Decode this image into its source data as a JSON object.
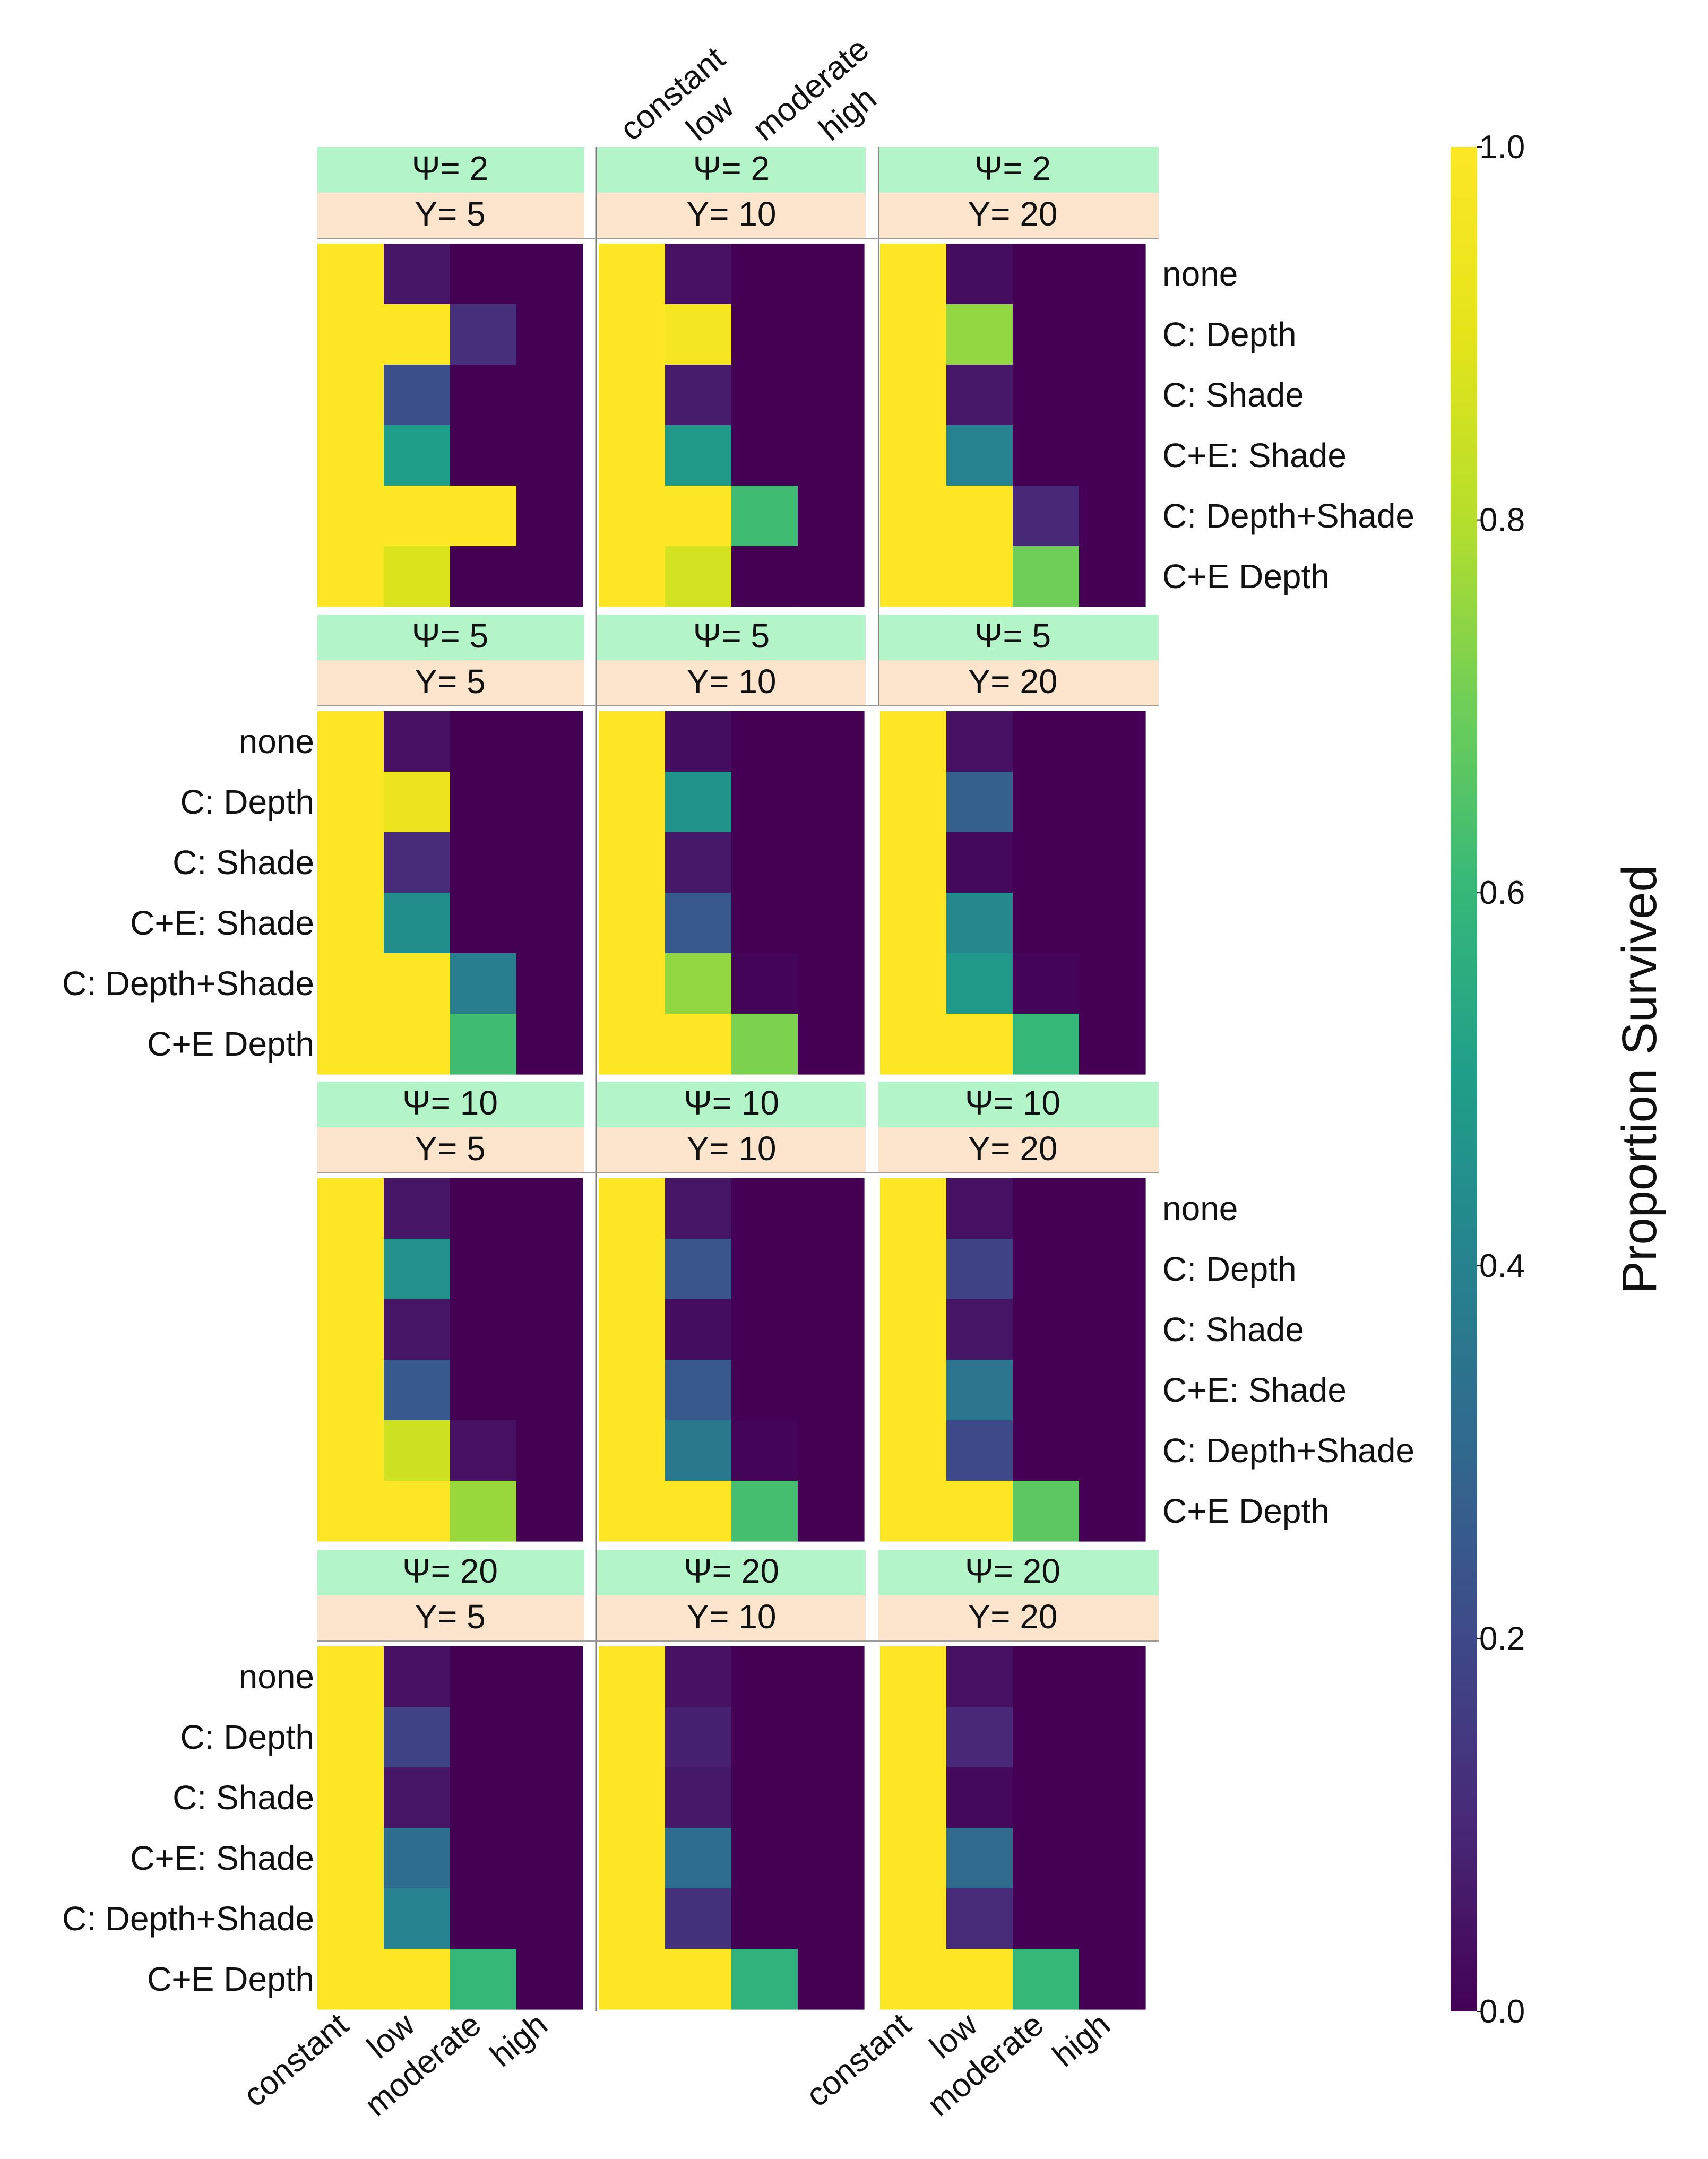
{
  "chart_data": {
    "type": "heatmap",
    "colorbar": {
      "label": "Proportion Survived",
      "ticks": [
        1.0,
        0.8,
        0.6,
        0.4,
        0.2,
        0.0
      ],
      "tick_labels": [
        "1.0",
        "0.8",
        "0.6",
        "0.4",
        "0.2",
        "0.0"
      ],
      "range": [
        0,
        1
      ],
      "colormap": "viridis"
    },
    "x_categories": [
      "constant",
      "low",
      "moderate",
      "high"
    ],
    "y_categories": [
      "none",
      "C: Depth",
      "C: Shade",
      "C+E: Shade",
      "C: Depth+Shade",
      "C+E Depth"
    ],
    "strip_colors": {
      "psi": "#b3f5c8",
      "y": "#fde4cc"
    },
    "panels": [
      {
        "psi": "Ψ= 2",
        "y": "Y= 5",
        "values": [
          [
            1,
            0.05,
            0,
            0
          ],
          [
            1,
            1,
            0.12,
            0
          ],
          [
            1,
            0.22,
            0,
            0
          ],
          [
            1,
            0.5,
            0,
            0
          ],
          [
            1,
            1,
            1,
            0
          ],
          [
            1,
            0.88,
            0,
            0
          ]
        ]
      },
      {
        "psi": "Ψ= 2",
        "y": "Y= 10",
        "values": [
          [
            1,
            0.04,
            0,
            0
          ],
          [
            1,
            0.97,
            0,
            0
          ],
          [
            1,
            0.07,
            0,
            0
          ],
          [
            1,
            0.48,
            0,
            0
          ],
          [
            1,
            1,
            0.62,
            0
          ],
          [
            1,
            0.86,
            0,
            0
          ]
        ]
      },
      {
        "psi": "Ψ= 2",
        "y": "Y= 20",
        "values": [
          [
            1,
            0.03,
            0,
            0
          ],
          [
            1,
            0.75,
            0,
            0
          ],
          [
            1,
            0.06,
            0,
            0
          ],
          [
            1,
            0.4,
            0,
            0
          ],
          [
            1,
            1,
            0.1,
            0
          ],
          [
            1,
            1,
            0.7,
            0
          ]
        ]
      },
      {
        "psi": "Ψ= 5",
        "y": "Y= 5",
        "values": [
          [
            1,
            0.04,
            0,
            0
          ],
          [
            1,
            0.93,
            0,
            0
          ],
          [
            1,
            0.11,
            0,
            0
          ],
          [
            1,
            0.44,
            0,
            0
          ],
          [
            1,
            1,
            0.38,
            0
          ],
          [
            1,
            1,
            0.62,
            0
          ]
        ]
      },
      {
        "psi": "Ψ= 5",
        "y": "Y= 10",
        "values": [
          [
            1,
            0.03,
            0,
            0
          ],
          [
            1,
            0.46,
            0,
            0
          ],
          [
            1,
            0.06,
            0,
            0
          ],
          [
            1,
            0.25,
            0,
            0
          ],
          [
            1,
            0.75,
            0.01,
            0
          ],
          [
            1,
            1,
            0.72,
            0
          ]
        ]
      },
      {
        "psi": "Ψ= 5",
        "y": "Y= 20",
        "values": [
          [
            1,
            0.04,
            0,
            0
          ],
          [
            1,
            0.27,
            0,
            0
          ],
          [
            1,
            0.02,
            0,
            0
          ],
          [
            1,
            0.42,
            0,
            0
          ],
          [
            1,
            0.48,
            0.01,
            0
          ],
          [
            1,
            1,
            0.6,
            0
          ]
        ]
      },
      {
        "psi": "Ψ= 10",
        "y": "Y= 5",
        "values": [
          [
            1,
            0.05,
            0,
            0
          ],
          [
            1,
            0.45,
            0,
            0
          ],
          [
            1,
            0.05,
            0,
            0
          ],
          [
            1,
            0.25,
            0,
            0
          ],
          [
            1,
            0.85,
            0.04,
            0
          ],
          [
            1,
            1,
            0.76,
            0
          ]
        ]
      },
      {
        "psi": "Ψ= 10",
        "y": "Y= 10",
        "values": [
          [
            1,
            0.05,
            0,
            0
          ],
          [
            1,
            0.24,
            0,
            0
          ],
          [
            1,
            0.03,
            0,
            0
          ],
          [
            1,
            0.25,
            0,
            0
          ],
          [
            1,
            0.36,
            0.01,
            0
          ],
          [
            1,
            1,
            0.63,
            0
          ]
        ]
      },
      {
        "psi": "Ψ= 10",
        "y": "Y= 20",
        "values": [
          [
            1,
            0.04,
            0,
            0
          ],
          [
            1,
            0.18,
            0,
            0
          ],
          [
            1,
            0.05,
            0,
            0
          ],
          [
            1,
            0.35,
            0,
            0
          ],
          [
            1,
            0.2,
            0,
            0
          ],
          [
            1,
            1,
            0.67,
            0
          ]
        ]
      },
      {
        "psi": "Ψ= 20",
        "y": "Y= 5",
        "values": [
          [
            1,
            0.04,
            0,
            0
          ],
          [
            1,
            0.18,
            0,
            0
          ],
          [
            1,
            0.05,
            0,
            0
          ],
          [
            1,
            0.32,
            0,
            0
          ],
          [
            1,
            0.4,
            0,
            0
          ],
          [
            1,
            1,
            0.6,
            0
          ]
        ]
      },
      {
        "psi": "Ψ= 20",
        "y": "Y= 10",
        "values": [
          [
            1,
            0.04,
            0,
            0
          ],
          [
            1,
            0.08,
            0,
            0
          ],
          [
            1,
            0.06,
            0,
            0
          ],
          [
            1,
            0.32,
            0,
            0
          ],
          [
            1,
            0.13,
            0,
            0
          ],
          [
            1,
            1,
            0.58,
            0
          ]
        ]
      },
      {
        "psi": "Ψ= 20",
        "y": "Y= 20",
        "values": [
          [
            1,
            0.04,
            0,
            0
          ],
          [
            1,
            0.1,
            0,
            0
          ],
          [
            1,
            0.02,
            0,
            0
          ],
          [
            1,
            0.31,
            0,
            0
          ],
          [
            1,
            0.11,
            0,
            0
          ],
          [
            1,
            1,
            0.6,
            0
          ]
        ]
      }
    ]
  }
}
